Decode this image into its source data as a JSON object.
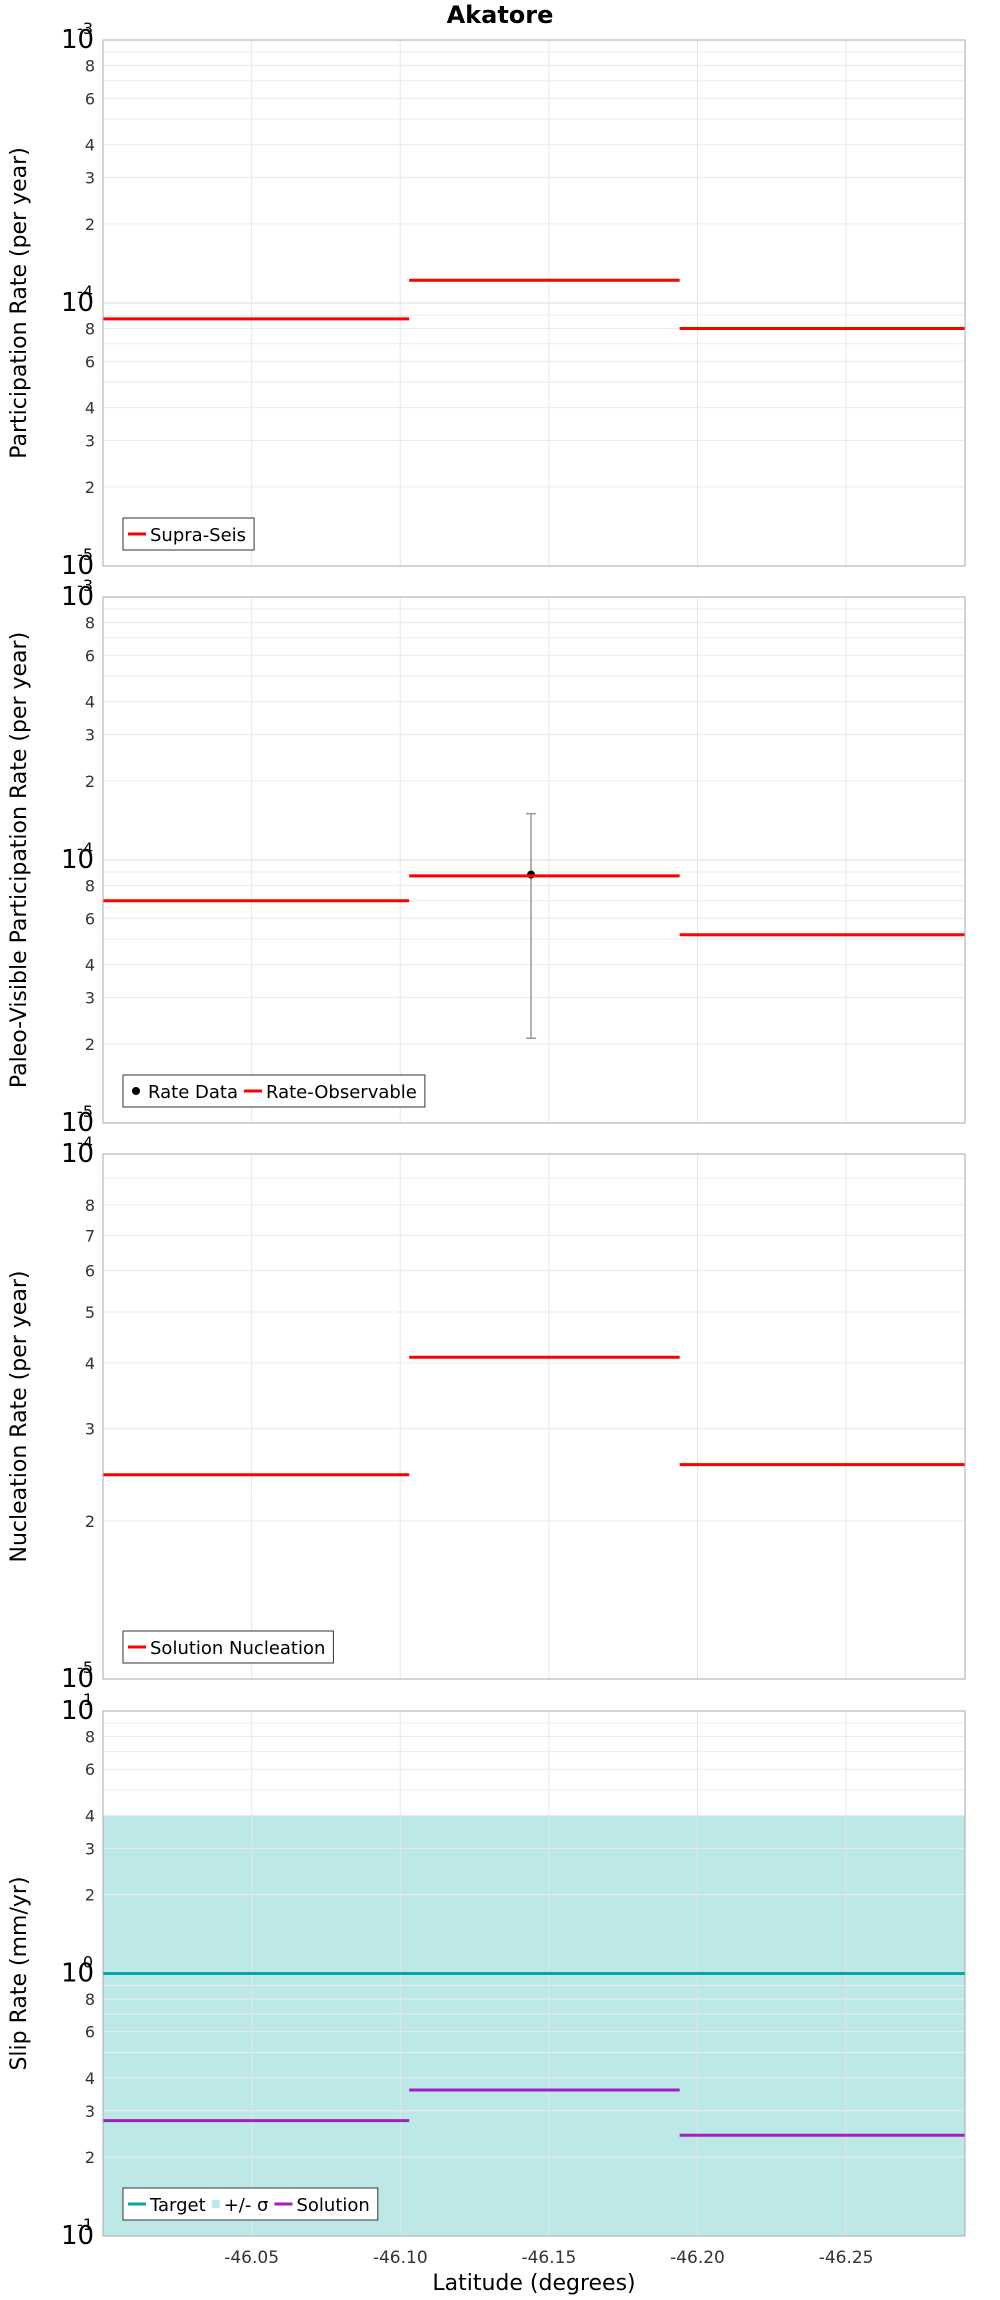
{
  "chart_data": {
    "title": "Akatore",
    "xlabel": "Latitude (degrees)",
    "xlim": [
      -46.0,
      -46.29
    ],
    "x_ticks": [
      -46.05,
      -46.1,
      -46.15,
      -46.2,
      -46.25
    ],
    "x_tick_labels": [
      "-46.05",
      "-46.10",
      "-46.15",
      "-46.20",
      "-46.25"
    ],
    "panels": [
      {
        "type": "line",
        "ylabel": "Participation Rate (per year)",
        "yscale": "log",
        "ylim": [
          1e-05,
          0.001
        ],
        "decade_labels": [
          {
            "exp": "-5"
          },
          {
            "exp": "-3"
          },
          {
            "exp": "-4"
          }
        ],
        "legend_position": "bottom-left",
        "series": [
          {
            "name": "Supra-Seis",
            "color": "#ff0000",
            "segments": [
              {
                "x0": -46.0,
                "x1": -46.103,
                "y": 8.7e-05
              },
              {
                "x0": -46.103,
                "x1": -46.194,
                "y": 0.000122
              },
              {
                "x0": -46.194,
                "x1": -46.29,
                "y": 8e-05
              }
            ]
          }
        ]
      },
      {
        "type": "line",
        "ylabel": "Paleo-Visible Participation Rate (per year)",
        "yscale": "log",
        "ylim": [
          1e-05,
          0.001
        ],
        "decade_labels": [
          {
            "exp": "-5"
          },
          {
            "exp": "-3"
          },
          {
            "exp": "-4"
          }
        ],
        "legend_position": "bottom-left",
        "series": [
          {
            "name": "Rate Data",
            "color": "#000000",
            "points": [
              {
                "x": -46.144,
                "y": 8.8e-05,
                "err_low": 2.1e-05,
                "err_high": 0.00015
              }
            ]
          },
          {
            "name": "Rate-Observable",
            "color": "#ff0000",
            "segments": [
              {
                "x0": -46.0,
                "x1": -46.103,
                "y": 7e-05
              },
              {
                "x0": -46.103,
                "x1": -46.194,
                "y": 8.7e-05
              },
              {
                "x0": -46.194,
                "x1": -46.29,
                "y": 5.2e-05
              }
            ]
          }
        ]
      },
      {
        "type": "line",
        "ylabel": "Nucleation Rate (per year)",
        "yscale": "log",
        "ylim": [
          1e-05,
          0.0001
        ],
        "decade_labels": [
          {
            "exp": "-5"
          },
          {
            "exp": "-4"
          }
        ],
        "legend_position": "bottom-left",
        "series": [
          {
            "name": "Solution Nucleation",
            "color": "#ff0000",
            "segments": [
              {
                "x0": -46.0,
                "x1": -46.103,
                "y": 2.45e-05
              },
              {
                "x0": -46.103,
                "x1": -46.194,
                "y": 4.1e-05
              },
              {
                "x0": -46.194,
                "x1": -46.29,
                "y": 2.56e-05
              }
            ]
          }
        ]
      },
      {
        "type": "line",
        "ylabel": "Slip Rate (mm/yr)",
        "yscale": "log",
        "ylim": [
          0.1,
          10
        ],
        "decade_labels": [
          {
            "exp": "-1"
          },
          {
            "exp": "0"
          },
          {
            "exp": "1"
          }
        ],
        "legend_position": "bottom-left",
        "band": {
          "name": "+/- σ",
          "color": "#bde8e8",
          "low": 0.1,
          "high": 4.0
        },
        "series": [
          {
            "name": "Target",
            "color": "#00a8a8",
            "segments": [
              {
                "x0": -46.0,
                "x1": -46.29,
                "y": 1.0
              }
            ]
          },
          {
            "name": "Solution",
            "color": "#a020c0",
            "segments": [
              {
                "x0": -46.0,
                "x1": -46.103,
                "y": 0.275
              },
              {
                "x0": -46.103,
                "x1": -46.194,
                "y": 0.36
              },
              {
                "x0": -46.194,
                "x1": -46.29,
                "y": 0.242
              }
            ]
          }
        ]
      }
    ]
  }
}
